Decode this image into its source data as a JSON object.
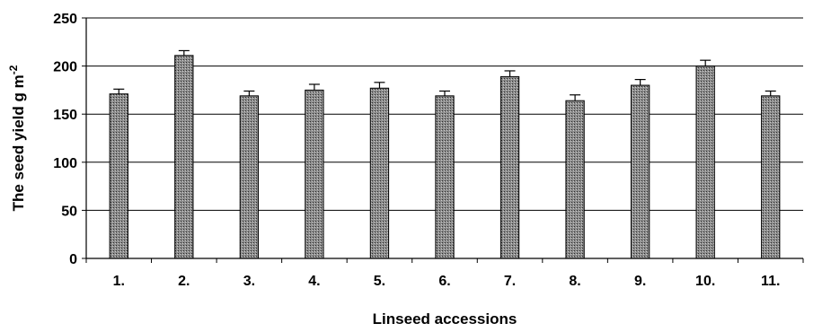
{
  "chart_data": {
    "type": "bar",
    "categories": [
      "1.",
      "2.",
      "3.",
      "4.",
      "5.",
      "6.",
      "7.",
      "8.",
      "9.",
      "10.",
      "11."
    ],
    "values": [
      171,
      211,
      169,
      175,
      177,
      169,
      189,
      164,
      180,
      200,
      169
    ],
    "errors": [
      5,
      5,
      5,
      6,
      6,
      5,
      6,
      6,
      6,
      6,
      5
    ],
    "ylim": [
      0,
      250
    ],
    "yticks": [
      0,
      50,
      100,
      150,
      200,
      250
    ],
    "ylabel_main": "The seed yield g m",
    "ylabel_sup": "-2",
    "xlabel": "Linseed accessions",
    "grid": true,
    "bar_color": "#888888",
    "grid_color": "#000000"
  }
}
